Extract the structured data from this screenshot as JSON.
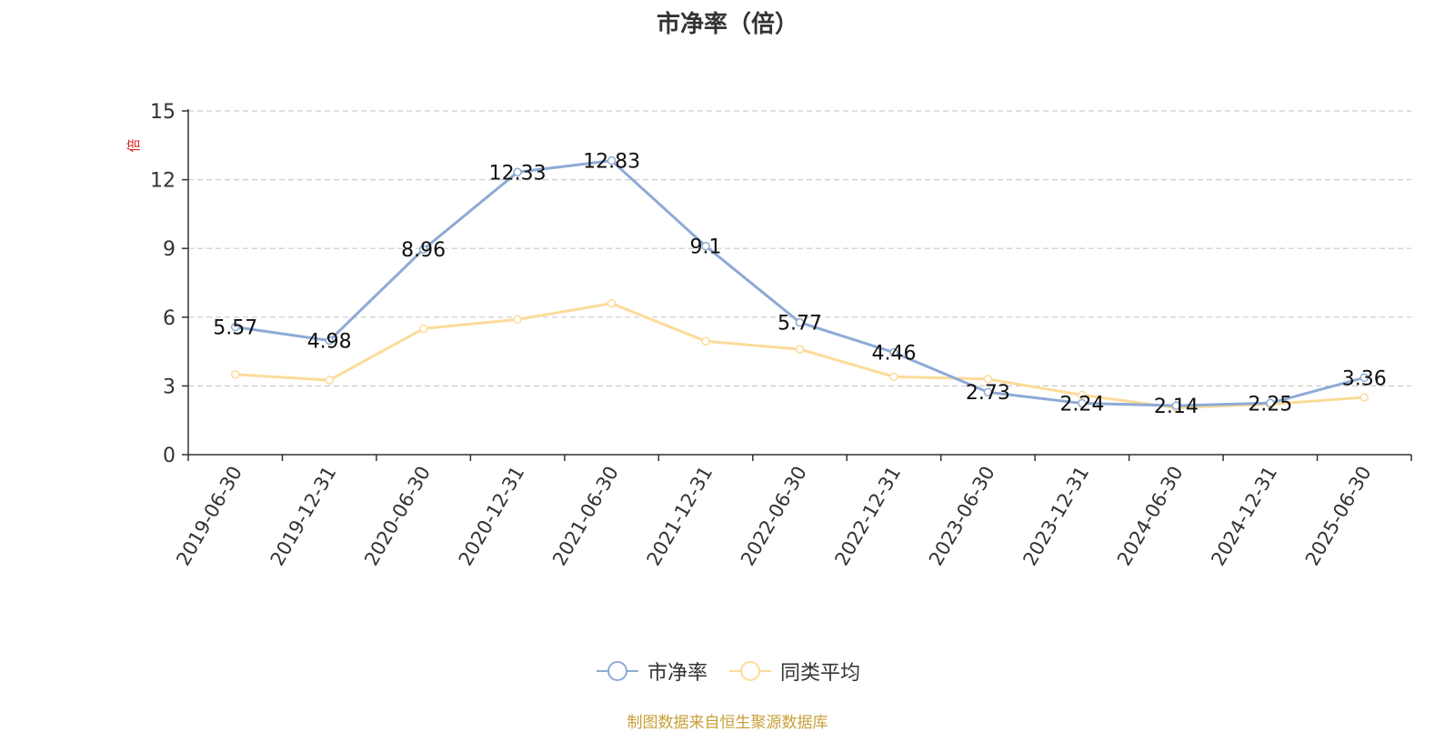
{
  "chart_data": {
    "type": "line",
    "title": "市净率（倍）",
    "ylabel": "倍",
    "xlabel": "",
    "categories": [
      "2019-06-30",
      "2019-12-31",
      "2020-06-30",
      "2020-12-31",
      "2021-06-30",
      "2021-12-31",
      "2022-06-30",
      "2022-12-31",
      "2023-06-30",
      "2023-12-31",
      "2024-06-30",
      "2024-12-31",
      "2025-06-30"
    ],
    "series": [
      {
        "name": "市净率",
        "color": "#8eaad6",
        "labeled": true,
        "values": [
          5.57,
          4.98,
          8.96,
          12.33,
          12.83,
          9.1,
          5.77,
          4.46,
          2.73,
          2.24,
          2.14,
          2.25,
          3.36
        ],
        "labels": [
          "5.57",
          "4.98",
          "8.96",
          "12.33",
          "12.83",
          "9.1",
          "5.77",
          "4.46",
          "2.73",
          "2.24",
          "2.14",
          "2.25",
          "3.36"
        ]
      },
      {
        "name": "同类平均",
        "color": "#fddb9a",
        "labeled": false,
        "values": [
          3.5,
          3.25,
          5.5,
          5.9,
          6.6,
          4.95,
          4.6,
          3.4,
          3.3,
          2.6,
          2.05,
          2.2,
          2.5
        ]
      }
    ],
    "ylim": [
      0,
      15
    ],
    "yticks": [
      "0",
      "3",
      "6",
      "9",
      "12",
      "15"
    ],
    "grid": true,
    "legend": "bottom"
  },
  "footer": {
    "source": "制图数据来自恒生聚源数据库"
  }
}
